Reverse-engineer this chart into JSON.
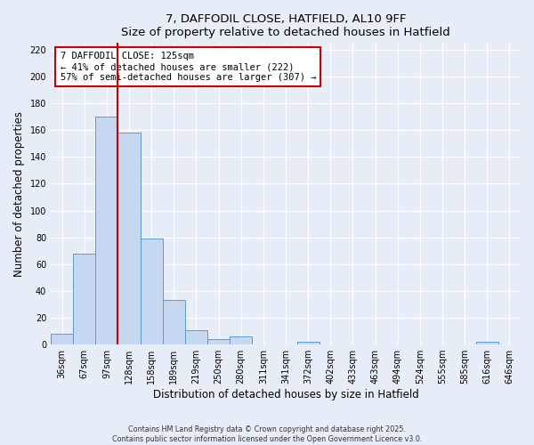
{
  "title": "7, DAFFODIL CLOSE, HATFIELD, AL10 9FF",
  "subtitle": "Size of property relative to detached houses in Hatfield",
  "xlabel": "Distribution of detached houses by size in Hatfield",
  "ylabel": "Number of detached properties",
  "bar_labels": [
    "36sqm",
    "67sqm",
    "97sqm",
    "128sqm",
    "158sqm",
    "189sqm",
    "219sqm",
    "250sqm",
    "280sqm",
    "311sqm",
    "341sqm",
    "372sqm",
    "402sqm",
    "433sqm",
    "463sqm",
    "494sqm",
    "524sqm",
    "555sqm",
    "585sqm",
    "616sqm",
    "646sqm"
  ],
  "bar_values": [
    8,
    68,
    170,
    158,
    79,
    33,
    11,
    4,
    6,
    0,
    0,
    2,
    0,
    0,
    0,
    0,
    0,
    0,
    0,
    2,
    0
  ],
  "bar_color": "#c5d8f0",
  "bar_edge_color": "#5b9bd5",
  "ylim": [
    0,
    225
  ],
  "yticks": [
    0,
    20,
    40,
    60,
    80,
    100,
    120,
    140,
    160,
    180,
    200,
    220
  ],
  "vline_x": 2.5,
  "vline_color": "#cc0000",
  "annotation_text": "7 DAFFODIL CLOSE: 125sqm\n← 41% of detached houses are smaller (222)\n57% of semi-detached houses are larger (307) →",
  "annotation_box_color": "#ffffff",
  "annotation_box_edge": "#cc0000",
  "footer1": "Contains HM Land Registry data © Crown copyright and database right 2025.",
  "footer2": "Contains public sector information licensed under the Open Government Licence v3.0.",
  "background_color": "#e8eef7",
  "grid_color": "#ffffff"
}
